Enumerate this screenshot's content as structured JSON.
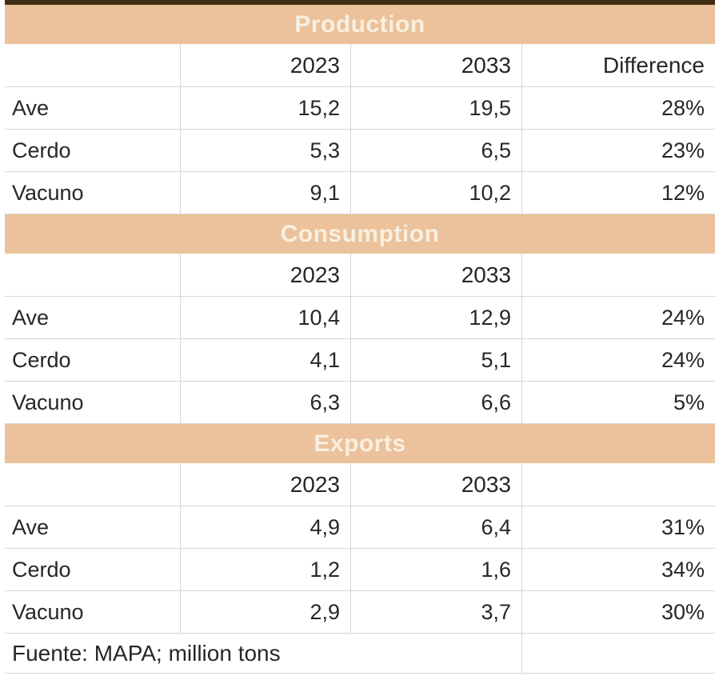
{
  "colors": {
    "band_background": "#ebc29b",
    "band_text": "#f9efe0",
    "top_bar": "#402d13",
    "grid_line": "#d6d6d6",
    "body_text": "#272727"
  },
  "columns": {
    "year1": "2023",
    "year2": "2033",
    "difference": "Difference"
  },
  "sections": [
    {
      "title": "Production",
      "rows": [
        {
          "label": "Ave",
          "v2023": "15,2",
          "v2033": "19,5",
          "diff": "28%"
        },
        {
          "label": "Cerdo",
          "v2023": "5,3",
          "v2033": "6,5",
          "diff": "23%"
        },
        {
          "label": "Vacuno",
          "v2023": "9,1",
          "v2033": "10,2",
          "diff": "12%"
        }
      ]
    },
    {
      "title": "Consumption",
      "rows": [
        {
          "label": "Ave",
          "v2023": "10,4",
          "v2033": "12,9",
          "diff": "24%"
        },
        {
          "label": "Cerdo",
          "v2023": "4,1",
          "v2033": "5,1",
          "diff": "24%"
        },
        {
          "label": "Vacuno",
          "v2023": "6,3",
          "v2033": "6,6",
          "diff": "5%"
        }
      ]
    },
    {
      "title": "Exports",
      "rows": [
        {
          "label": "Ave",
          "v2023": "4,9",
          "v2033": "6,4",
          "diff": "31%"
        },
        {
          "label": "Cerdo",
          "v2023": "1,2",
          "v2033": "1,6",
          "diff": "34%"
        },
        {
          "label": "Vacuno",
          "v2023": "2,9",
          "v2033": "3,7",
          "diff": "30%"
        }
      ]
    }
  ],
  "footer": {
    "source": "Fuente: MAPA; million tons"
  },
  "chart_data": {
    "type": "table",
    "unit": "million tons",
    "source": "MAPA",
    "columns": [
      "",
      "2023",
      "2033",
      "Difference"
    ],
    "sections": [
      {
        "name": "Production",
        "rows": [
          [
            "Ave",
            15.2,
            19.5,
            "28%"
          ],
          [
            "Cerdo",
            5.3,
            6.5,
            "23%"
          ],
          [
            "Vacuno",
            9.1,
            10.2,
            "12%"
          ]
        ]
      },
      {
        "name": "Consumption",
        "rows": [
          [
            "Ave",
            10.4,
            12.9,
            "24%"
          ],
          [
            "Cerdo",
            4.1,
            5.1,
            "24%"
          ],
          [
            "Vacuno",
            6.3,
            6.6,
            "5%"
          ]
        ]
      },
      {
        "name": "Exports",
        "rows": [
          [
            "Ave",
            4.9,
            6.4,
            "31%"
          ],
          [
            "Cerdo",
            1.2,
            1.6,
            "34%"
          ],
          [
            "Vacuno",
            2.9,
            3.7,
            "30%"
          ]
        ]
      }
    ]
  }
}
